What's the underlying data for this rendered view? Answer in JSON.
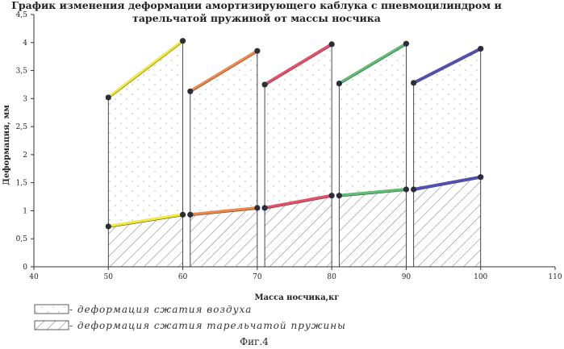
{
  "chart_data": {
    "type": "line",
    "title_lines": [
      "График изменения деформации амортизирующего каблука с пневмоцилиндром и",
      "тарельчатой пружиной от массы носчика"
    ],
    "xlabel": "Масса носчика,кг",
    "ylabel": "Деформация, мм",
    "xlim": [
      40,
      110
    ],
    "ylim": [
      0,
      4.5
    ],
    "x_ticks": [
      "40",
      "50",
      "60",
      "70",
      "80",
      "90",
      "100",
      "110"
    ],
    "y_ticks": [
      "0",
      "0,5",
      "1",
      "1,5",
      "2",
      "2,5",
      "3",
      "3,5",
      "4",
      "4,5"
    ],
    "x_tick_values": [
      40,
      50,
      60,
      70,
      80,
      90,
      100,
      110
    ],
    "y_tick_values": [
      0,
      0.5,
      1,
      1.5,
      2,
      2.5,
      3,
      3.5,
      4,
      4.5
    ],
    "series": [
      {
        "color": "#f2ea3a",
        "upper": [
          [
            50,
            3.02
          ],
          [
            60,
            4.03
          ]
        ],
        "lower": [
          [
            50,
            0.72
          ],
          [
            60,
            0.93
          ]
        ]
      },
      {
        "color": "#f0884a",
        "upper": [
          [
            61,
            3.13
          ],
          [
            70,
            3.85
          ]
        ],
        "lower": [
          [
            61,
            0.93
          ],
          [
            70,
            1.05
          ]
        ]
      },
      {
        "color": "#e8506a",
        "upper": [
          [
            71,
            3.25
          ],
          [
            80,
            3.97
          ]
        ],
        "lower": [
          [
            71,
            1.05
          ],
          [
            80,
            1.27
          ]
        ]
      },
      {
        "color": "#5cbf72",
        "upper": [
          [
            81,
            3.27
          ],
          [
            90,
            3.98
          ]
        ],
        "lower": [
          [
            81,
            1.27
          ],
          [
            90,
            1.38
          ]
        ]
      },
      {
        "color": "#5050b8",
        "upper": [
          [
            91,
            3.28
          ],
          [
            100,
            3.89
          ]
        ],
        "lower": [
          [
            91,
            1.38
          ],
          [
            100,
            1.6
          ]
        ]
      }
    ],
    "legend": [
      {
        "pattern": "dots",
        "label": "- деформация сжатия воздуха"
      },
      {
        "pattern": "hatch",
        "label": "- деформация сжатия тарельчатой пружины"
      }
    ],
    "caption": "Фиг.4"
  }
}
